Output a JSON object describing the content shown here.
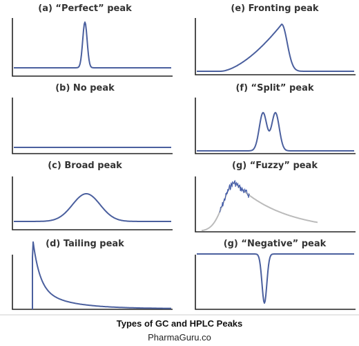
{
  "panels": [
    {
      "title": "(a) “Perfect” peak"
    },
    {
      "title": "(e) Fronting peak"
    },
    {
      "title": "(b) No peak"
    },
    {
      "title": "(f) “Split” peak"
    },
    {
      "title": "(c) Broad peak"
    },
    {
      "title": "(g) “Fuzzy” peak"
    },
    {
      "title": "(d) Tailing peak"
    },
    {
      "title": "(g) “Negative” peak"
    }
  ],
  "caption": {
    "title": "Types of GC and HPLC Peaks",
    "source": "PharmaGuru.co"
  }
}
